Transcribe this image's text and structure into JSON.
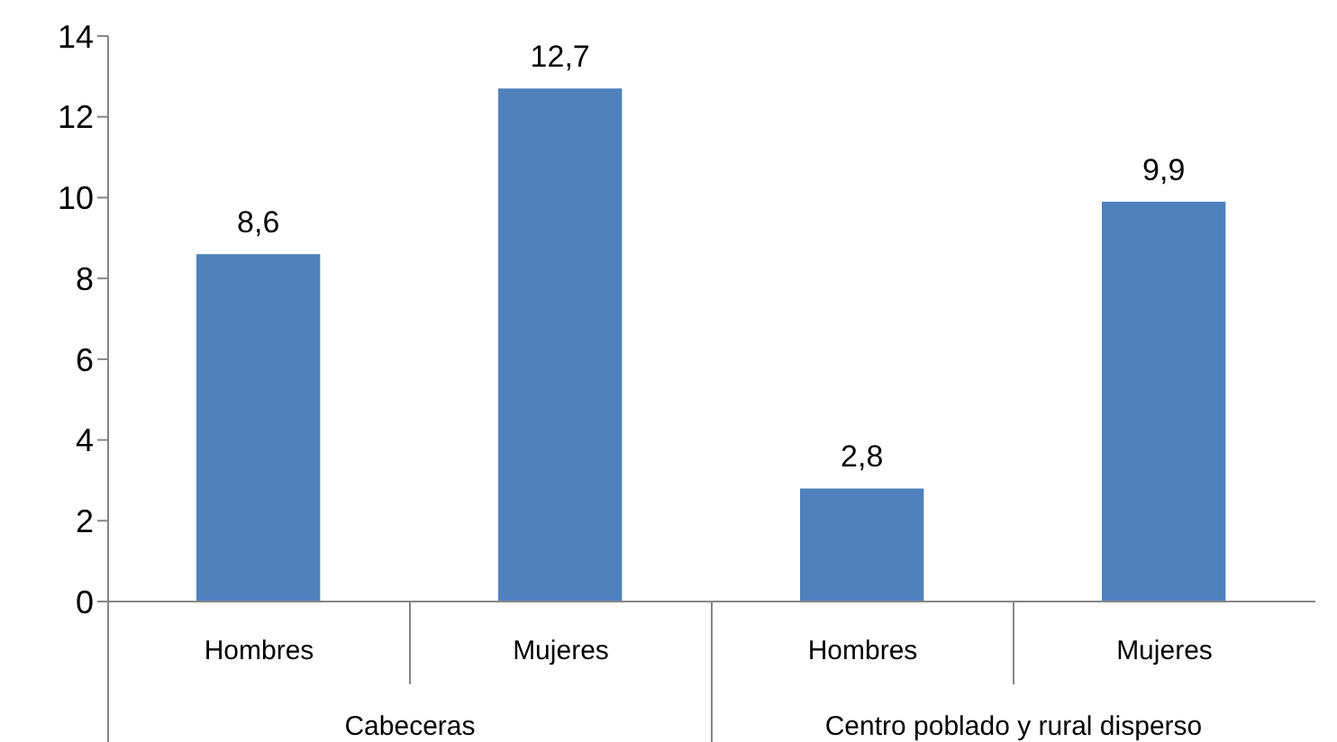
{
  "chart_data": {
    "type": "bar",
    "categories": [
      "Hombres",
      "Mujeres",
      "Hombres",
      "Mujeres"
    ],
    "values": [
      8.6,
      12.7,
      2.8,
      9.9
    ],
    "value_labels": [
      "8,6",
      "12,7",
      "2,8",
      "9,9"
    ],
    "color": "#4f81bd",
    "ylim": [
      0,
      14
    ],
    "yticks": [
      0,
      2,
      4,
      6,
      8,
      10,
      12,
      14
    ],
    "grid": false,
    "annotations": [
      "Cabeceras",
      "Centro poblado y rural disperso"
    ]
  }
}
